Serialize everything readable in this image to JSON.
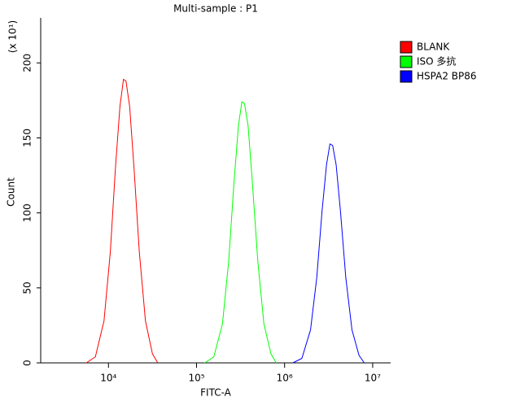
{
  "chart_data": {
    "type": "line",
    "title": "Multi-sample : P1",
    "xlabel": "FITC-A",
    "ylabel": "Count",
    "y_multiplier": "(x 10¹)",
    "xscale": "log",
    "xlim": [
      1700,
      16000000
    ],
    "xticks": [
      {
        "value": 10000,
        "label": "10⁴"
      },
      {
        "value": 100000,
        "label": "10⁵"
      },
      {
        "value": 1000000,
        "label": "10⁶"
      },
      {
        "value": 10000000,
        "label": "10⁷"
      }
    ],
    "ylim": [
      0,
      230
    ],
    "yticks": [
      0,
      50,
      100,
      150,
      200
    ],
    "legend": "upper right",
    "series": [
      {
        "name": "BLANK",
        "color": "#ff0000",
        "x": [
          5600,
          7100,
          8900,
          10500,
          12000,
          13500,
          14800,
          15800,
          17400,
          19500,
          22400,
          26300,
          31600,
          36300
        ],
        "values": [
          0,
          4,
          28,
          74,
          130,
          171,
          189,
          188,
          171,
          130,
          74,
          28,
          6,
          0
        ]
      },
      {
        "name": "ISO 多抗",
        "color": "#00ff00",
        "x": [
          124000,
          157000,
          197000,
          232000,
          266000,
          299000,
          327000,
          350000,
          385000,
          431000,
          496000,
          582000,
          700000,
          803000
        ],
        "values": [
          0,
          4,
          26,
          68,
          120,
          158,
          174,
          173,
          158,
          120,
          68,
          26,
          6,
          0
        ]
      },
      {
        "name": "HSPA2 BP86",
        "color": "#0000ff",
        "x": [
          1240000,
          1570000,
          1970000,
          2320000,
          2660000,
          2990000,
          3270000,
          3510000,
          3850000,
          4310000,
          4950000,
          5820000,
          7000000,
          8030000
        ],
        "values": [
          0,
          3,
          22,
          57,
          101,
          132,
          146,
          145,
          132,
          101,
          57,
          22,
          5,
          0
        ]
      }
    ]
  }
}
